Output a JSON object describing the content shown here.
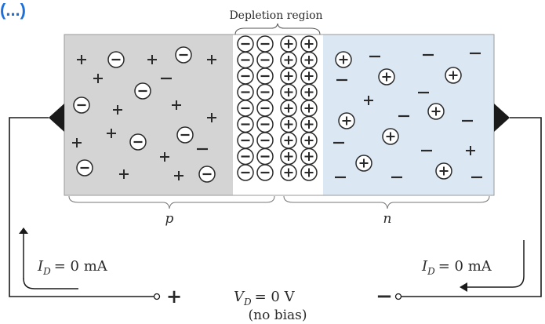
{
  "header_fragment": "(...)",
  "depletion_label": "Depletion region",
  "p_label": "p",
  "n_label": "n",
  "left_current": {
    "symbol": "I",
    "subscript": "D",
    "value": "= 0 mA"
  },
  "right_current": {
    "symbol": "I",
    "subscript": "D",
    "value": "= 0 mA"
  },
  "voltage": {
    "symbol": "V",
    "subscript": "D",
    "value": "= 0 V",
    "note": "(no bias)"
  },
  "terminal_plus": "+",
  "terminal_minus": "−",
  "colors": {
    "p_region": "#d4d4d4",
    "n_region": "#dbe8f4",
    "depletion_region": "#ffffff",
    "header_blue": "#1e6fd9",
    "ink": "#2a2a2a"
  }
}
